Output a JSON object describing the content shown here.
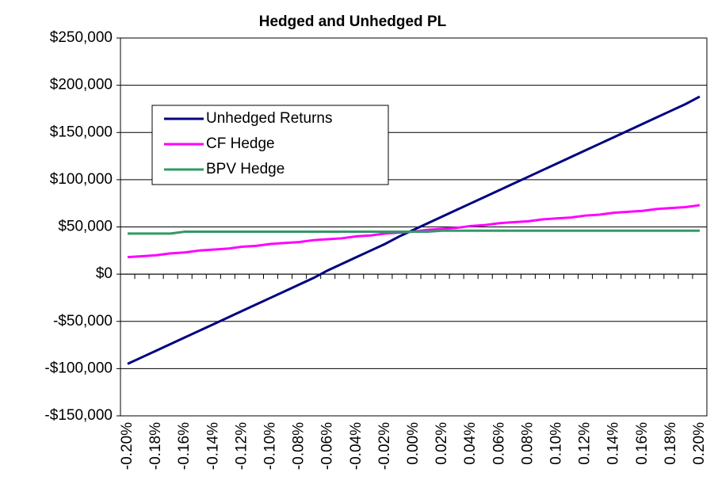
{
  "chart_data": {
    "type": "line",
    "title": "Hedged and Unhedged PL",
    "categories": [
      "-0.20%",
      null,
      "-0.18%",
      null,
      "-0.16%",
      null,
      "-0.14%",
      null,
      "-0.12%",
      null,
      "-0.10%",
      null,
      "-0.08%",
      null,
      "-0.06%",
      null,
      "-0.04%",
      null,
      "-0.02%",
      null,
      "0.00%",
      null,
      "0.02%",
      null,
      "0.04%",
      null,
      "0.06%",
      null,
      "0.08%",
      null,
      "0.10%",
      null,
      "0.12%",
      null,
      "0.14%",
      null,
      "0.16%",
      null,
      "0.18%",
      null,
      "0.20%"
    ],
    "series": [
      {
        "name": "Unhedged Returns",
        "color": "#000080",
        "values": [
          -95000,
          -88000,
          -81000,
          -74000,
          -67000,
          -60000,
          -53000,
          -46000,
          -39000,
          -32000,
          -25000,
          -18000,
          -11000,
          -4000,
          4000,
          11000,
          18000,
          25000,
          32000,
          40000,
          47000,
          54000,
          61000,
          68000,
          75000,
          82000,
          89000,
          96000,
          103000,
          110000,
          117000,
          124000,
          131000,
          138000,
          145000,
          152000,
          159000,
          166000,
          173000,
          180000,
          188000
        ]
      },
      {
        "name": "CF Hedge",
        "color": "#ff00ff",
        "values": [
          18000,
          19000,
          20000,
          22000,
          23000,
          25000,
          26000,
          27000,
          29000,
          30000,
          32000,
          33000,
          34000,
          36000,
          37000,
          38000,
          40000,
          41000,
          43000,
          44000,
          45000,
          47000,
          48000,
          49000,
          51000,
          52000,
          54000,
          55000,
          56000,
          58000,
          59000,
          60000,
          62000,
          63000,
          65000,
          66000,
          67000,
          69000,
          70000,
          71000,
          73000
        ]
      },
      {
        "name": "BPV Hedge",
        "color": "#339966",
        "values": [
          43000,
          43000,
          43000,
          43000,
          45000,
          45000,
          45000,
          45000,
          45000,
          45000,
          45000,
          45000,
          45000,
          45000,
          45000,
          45000,
          45000,
          45000,
          45000,
          45000,
          45000,
          45000,
          46000,
          46000,
          46000,
          46000,
          46000,
          46000,
          46000,
          46000,
          46000,
          46000,
          46000,
          46000,
          46000,
          46000,
          46000,
          46000,
          46000,
          46000,
          46000
        ]
      }
    ],
    "ylim": [
      -150000,
      250000
    ],
    "yticks": [
      {
        "value": -150000,
        "label": "-$150,000"
      },
      {
        "value": -100000,
        "label": "-$100,000"
      },
      {
        "value": -50000,
        "label": "-$50,000"
      },
      {
        "value": 0,
        "label": "$0"
      },
      {
        "value": 50000,
        "label": "$50,000"
      },
      {
        "value": 100000,
        "label": "$100,000"
      },
      {
        "value": 150000,
        "label": "$150,000"
      },
      {
        "value": 200000,
        "label": "$200,000"
      },
      {
        "value": 250000,
        "label": "$250,000"
      }
    ],
    "grid": true
  }
}
